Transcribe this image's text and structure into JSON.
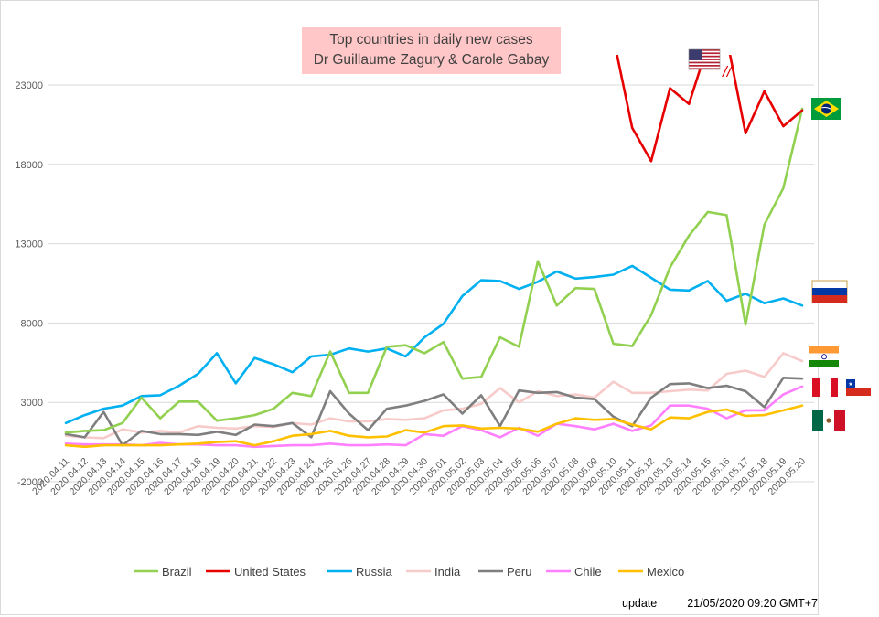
{
  "chart_data": {
    "type": "line",
    "title": "Top countries in daily new cases",
    "subtitle": "Dr Guillaume Zagury & Carole Gabay",
    "xlabel": "",
    "ylabel": "",
    "ylim": [
      -2000,
      23000
    ],
    "yticks": [
      -2000,
      3000,
      8000,
      13000,
      18000,
      23000
    ],
    "grid": true,
    "legend_position": "bottom",
    "categories": [
      "2020.04.11",
      "2020.04.12",
      "2020.04.13",
      "2020.04.14",
      "2020.04.15",
      "2020.04.16",
      "2020.04.17",
      "2020.04.18",
      "2020.04.19",
      "2020.04.20",
      "2020.04.21",
      "2020.04.22",
      "2020.04.23",
      "2020.04.24",
      "2020.04.25",
      "2020.04.26",
      "2020.04.27",
      "2020.04.28",
      "2020.04.29",
      "2020.04.30",
      "2020.05.01",
      "2020.05.02",
      "2020.05.03",
      "2020.05.04",
      "2020.05.05",
      "2020.05.06",
      "2020.05.07",
      "2020.05.08",
      "2020.05.09",
      "2020.05.10",
      "2020.05.11",
      "2020.05.12",
      "2020.05.13",
      "2020.05.14",
      "2020.05.15",
      "2020.05.16",
      "2020.05.17",
      "2020.05.18",
      "2020.05.19",
      "2020.05.20"
    ],
    "series": [
      {
        "name": "Brazil",
        "color": "#92d050",
        "values": [
          1100,
          1200,
          1250,
          1700,
          3300,
          2000,
          3050,
          3050,
          1850,
          2000,
          2200,
          2600,
          3600,
          3400,
          6200,
          3600,
          3600,
          6500,
          6600,
          6100,
          6800,
          4500,
          4600,
          7100,
          6500,
          11900,
          9100,
          10200,
          10150,
          6700,
          6550,
          8500,
          11500,
          13500,
          15000,
          14800,
          7900,
          14200,
          16500,
          21500
        ]
      },
      {
        "name": "United States",
        "color": "#e60000",
        "values": [
          null,
          null,
          null,
          null,
          null,
          null,
          null,
          null,
          null,
          null,
          null,
          null,
          null,
          null,
          null,
          null,
          null,
          null,
          null,
          null,
          null,
          null,
          null,
          null,
          null,
          null,
          null,
          null,
          null,
          26000,
          20300,
          18200,
          22800,
          21800,
          25500,
          26000,
          19950,
          22600,
          20400,
          21400
        ]
      },
      {
        "name": "Russia",
        "color": "#00b0f0",
        "values": [
          1700,
          2200,
          2600,
          2800,
          3400,
          3450,
          4050,
          4800,
          6100,
          4200,
          5800,
          5400,
          4900,
          5900,
          6000,
          6400,
          6200,
          6400,
          5900,
          7100,
          7950,
          9700,
          10700,
          10650,
          10150,
          10600,
          11250,
          10800,
          10900,
          11050,
          11600,
          10850,
          10100,
          10050,
          10650,
          9400,
          9850,
          9250,
          9550,
          9100
        ]
      },
      {
        "name": "India",
        "color": "#f8cbcb",
        "values": [
          900,
          800,
          750,
          1300,
          1100,
          1200,
          1100,
          1500,
          1400,
          1350,
          1500,
          1450,
          1700,
          1600,
          2000,
          1800,
          1800,
          1950,
          1900,
          2000,
          2500,
          2600,
          2900,
          3900,
          3000,
          3700,
          3400,
          3500,
          3300,
          4300,
          3600,
          3600,
          3700,
          3800,
          3750,
          4800,
          5000,
          4600,
          6100,
          5600
        ]
      },
      {
        "name": "Peru",
        "color": "#7f7f7f",
        "values": [
          1000,
          800,
          2400,
          300,
          1200,
          1000,
          1000,
          950,
          1150,
          950,
          1600,
          1500,
          1700,
          800,
          3700,
          2300,
          1250,
          2600,
          2800,
          3100,
          3500,
          2300,
          3450,
          1500,
          3750,
          3600,
          3650,
          3300,
          3200,
          2100,
          1500,
          3300,
          4150,
          4200,
          3900,
          4050,
          3700,
          2700,
          4550,
          4500
        ]
      },
      {
        "name": "Chile",
        "color": "#ff80ff",
        "values": [
          400,
          350,
          350,
          350,
          300,
          450,
          350,
          350,
          300,
          300,
          200,
          250,
          300,
          300,
          400,
          300,
          300,
          350,
          300,
          1000,
          900,
          1500,
          1250,
          800,
          1400,
          900,
          1650,
          1500,
          1300,
          1650,
          1200,
          1550,
          2800,
          2800,
          2600,
          2000,
          2500,
          2500,
          3500,
          4000
        ]
      },
      {
        "name": "Mexico",
        "color": "#ffc000",
        "values": [
          300,
          200,
          300,
          300,
          300,
          300,
          350,
          400,
          500,
          550,
          300,
          550,
          900,
          1000,
          1200,
          900,
          800,
          850,
          1250,
          1100,
          1500,
          1550,
          1350,
          1400,
          1350,
          1150,
          1650,
          2000,
          1900,
          1950,
          1600,
          1300,
          2050,
          2000,
          2400,
          2550,
          2150,
          2200,
          2500,
          2800
        ]
      }
    ]
  },
  "footer": {
    "label": "update",
    "timestamp": "21/05/2020 09:20  GMT+7"
  },
  "annotations": {
    "break_mark": "//"
  },
  "flags": [
    {
      "country": "United States",
      "icon": "us-flag-icon"
    },
    {
      "country": "Brazil",
      "icon": "brazil-flag-icon"
    },
    {
      "country": "Russia",
      "icon": "russia-flag-icon"
    },
    {
      "country": "India",
      "icon": "india-flag-icon"
    },
    {
      "country": "Peru",
      "icon": "peru-flag-icon"
    },
    {
      "country": "Chile",
      "icon": "chile-flag-icon"
    },
    {
      "country": "Mexico",
      "icon": "mexico-flag-icon"
    }
  ]
}
